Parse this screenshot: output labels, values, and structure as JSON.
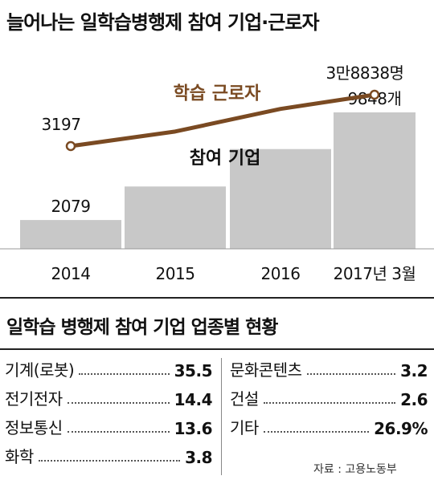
{
  "title": "늘어나는 일학습병행제 참여 기업·근로자",
  "chart_data": {
    "type": "bar+line",
    "categories": [
      "2014",
      "2015",
      "2016",
      "2017년 3월"
    ],
    "line_series": {
      "name": "학습 근로자",
      "values": [
        3197,
        13300,
        29000,
        38838
      ],
      "labels": [
        "3197",
        "",
        "",
        "3만8838명"
      ],
      "color": "#7a4a22"
    },
    "bar_series": {
      "name": "참여 기업",
      "values": [
        2079,
        4500,
        7200,
        9848
      ],
      "labels": [
        "2079",
        "",
        "",
        "9848개"
      ],
      "color": "#c8c8c8"
    }
  },
  "sector_title": "일학습 병행제 참여 기업 업종별 현황",
  "sectors_left": [
    {
      "label": "기계(로봇)",
      "value": "35.5"
    },
    {
      "label": "전기전자",
      "value": "14.4"
    },
    {
      "label": "정보통신",
      "value": "13.6"
    },
    {
      "label": "화학",
      "value": "3.8"
    }
  ],
  "sectors_right": [
    {
      "label": "문화콘텐츠",
      "value": "3.2"
    },
    {
      "label": "건설",
      "value": "2.6"
    },
    {
      "label": "기타",
      "value": "26.9%"
    }
  ],
  "source": "자료 : 고용노동부"
}
